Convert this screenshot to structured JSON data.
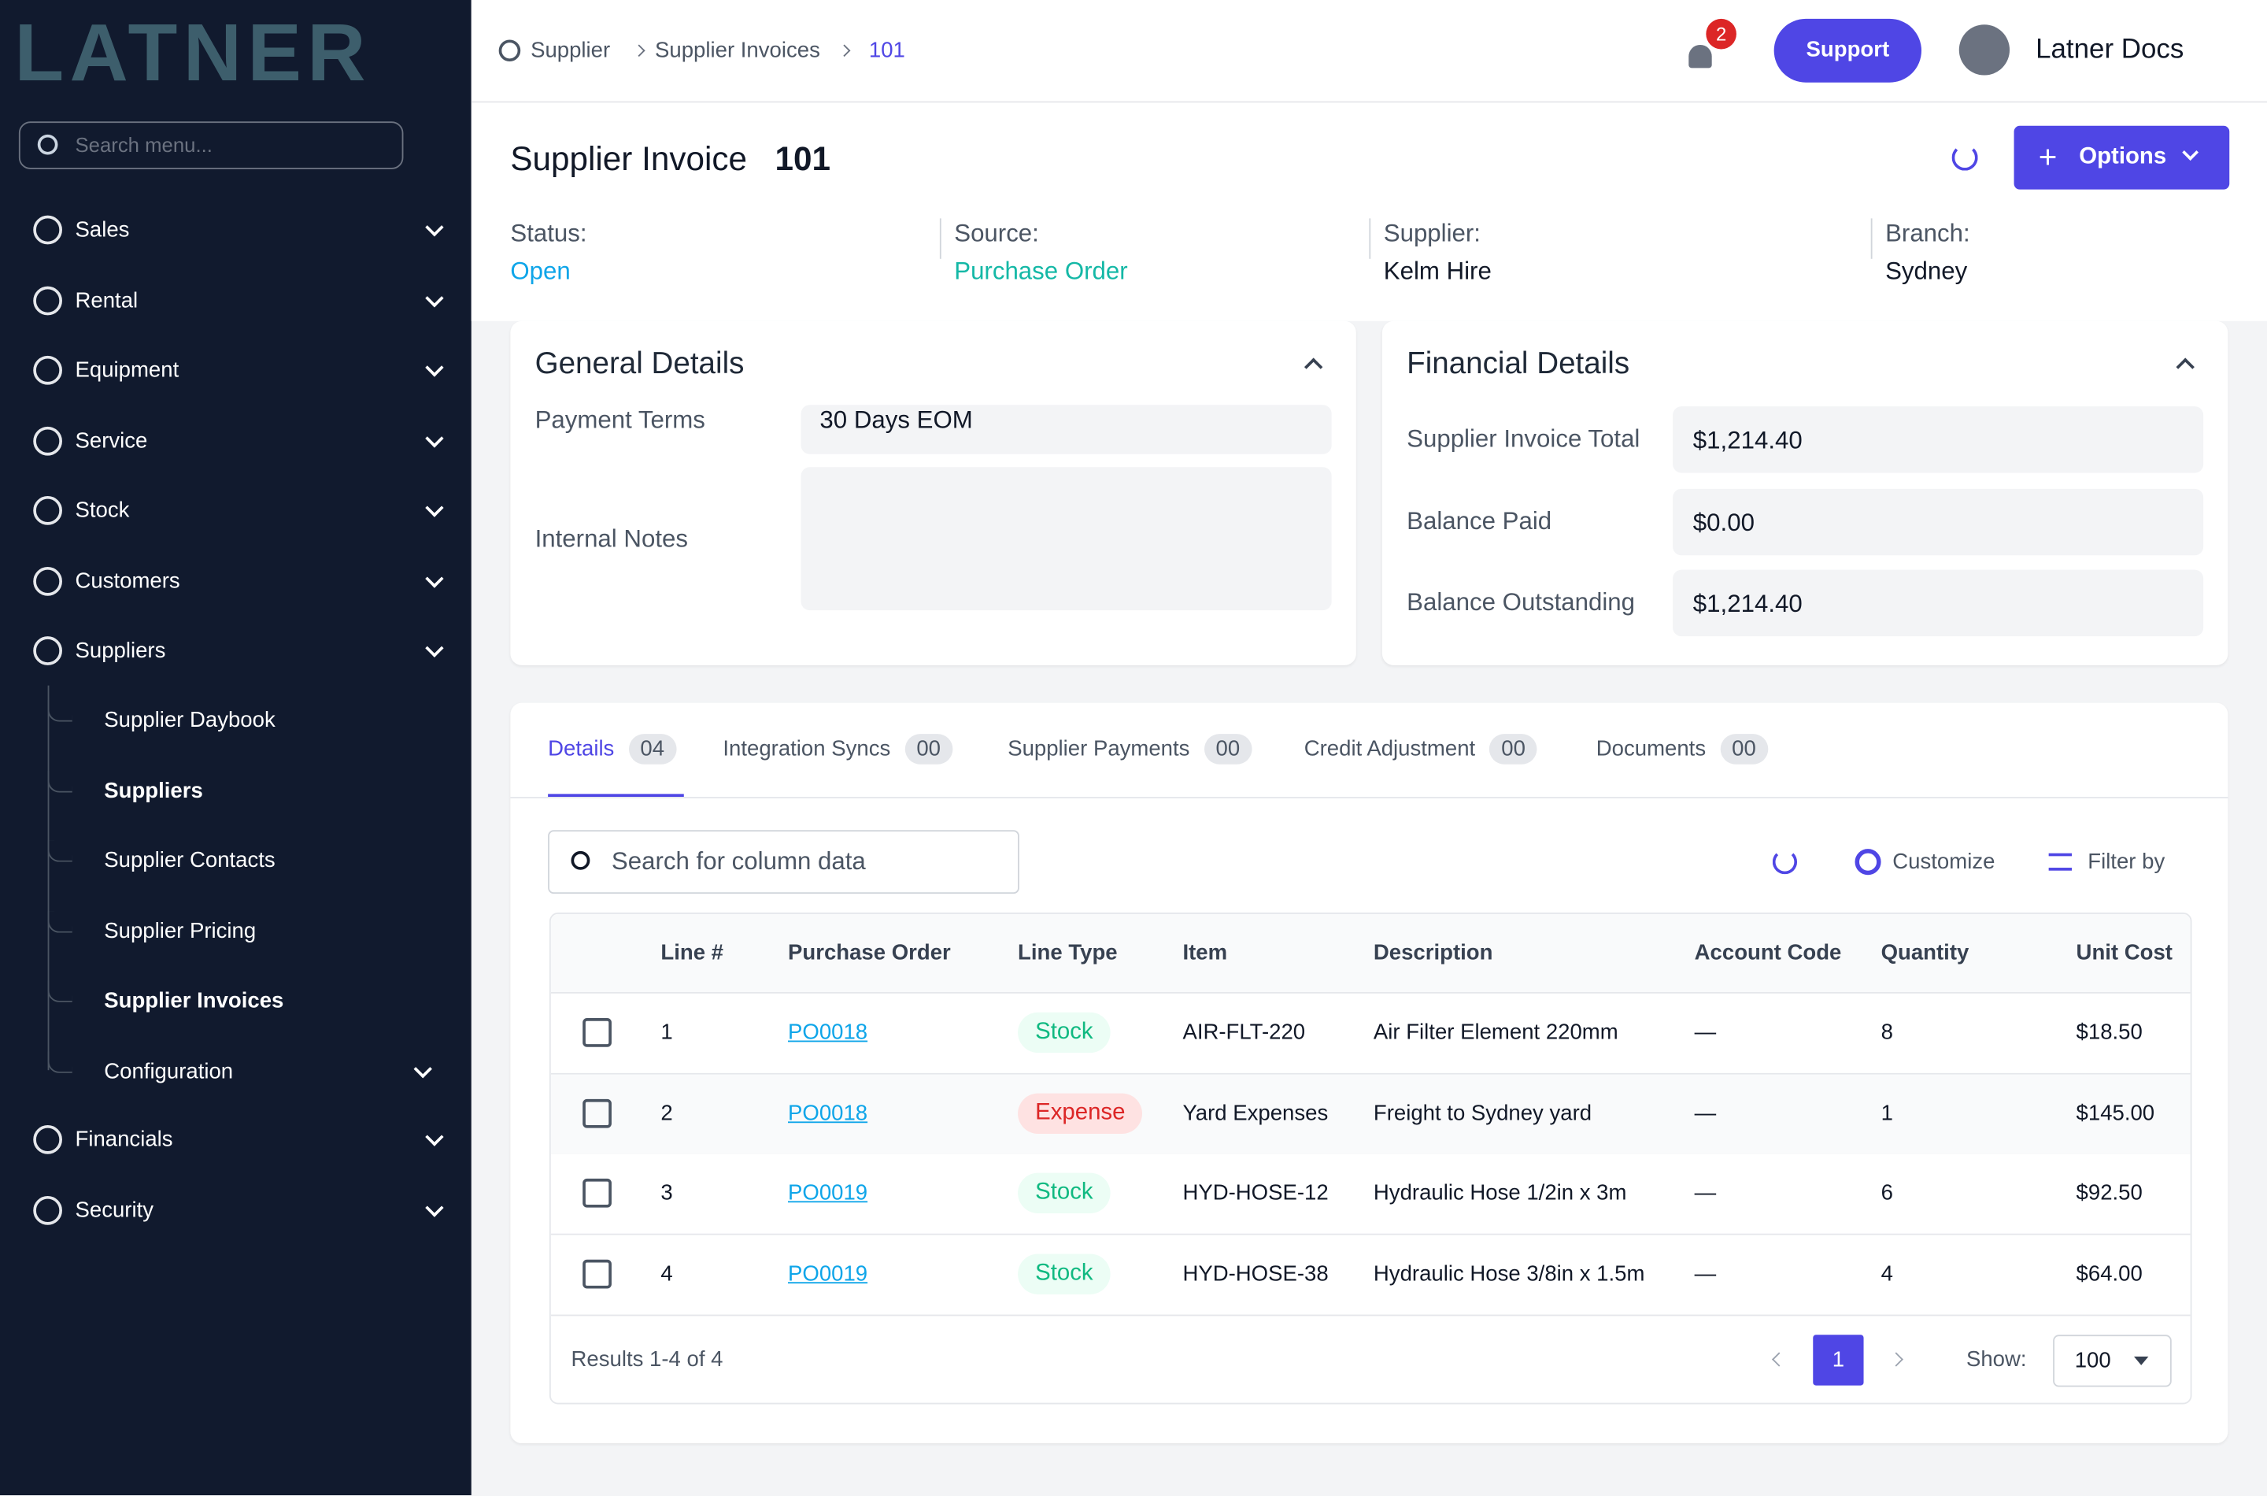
{
  "brand": "LATNER",
  "sidebar": {
    "search_placeholder": "Search menu...",
    "items": [
      "Sales",
      "Rental",
      "Equipment",
      "Service",
      "Stock",
      "Customers",
      "Suppliers"
    ],
    "children": [
      "Supplier Daybook",
      "Suppliers",
      "Supplier Contacts",
      "Supplier Pricing",
      "Supplier Invoices",
      "Configuration"
    ],
    "items_after": [
      "Financials",
      "Security"
    ]
  },
  "breadcrumb": [
    "Supplier",
    "Supplier Invoices",
    "101"
  ],
  "notifications": 2,
  "header": {
    "support": "Support",
    "user": "Latner Docs"
  },
  "invoice": {
    "title": "Supplier Invoice",
    "number": "101",
    "options": "Options",
    "fields": [
      {
        "label": "Status:",
        "value": "Open"
      },
      {
        "label": "Source:",
        "value": "Purchase Order"
      },
      {
        "label": "Supplier:",
        "value": "Kelm Hire"
      },
      {
        "label": "Branch:",
        "value": "Sydney"
      }
    ]
  },
  "general": {
    "title": "General Details",
    "payment_terms_label": "Payment Terms",
    "payment_terms": "30 Days EOM",
    "internal_notes_label": "Internal Notes"
  },
  "financial": {
    "title": "Financial Details",
    "rows": [
      {
        "label": "Supplier Invoice Total",
        "value": "$1,214.40"
      },
      {
        "label": "Balance Paid",
        "value": "$0.00"
      },
      {
        "label": "Balance Outstanding",
        "value": "$1,214.40"
      }
    ]
  },
  "tabs": [
    {
      "label": "Details",
      "count": "04"
    },
    {
      "label": "Integration Syncs",
      "count": "00"
    },
    {
      "label": "Supplier Payments",
      "count": "00"
    },
    {
      "label": "Credit Adjustment",
      "count": "00"
    },
    {
      "label": "Documents",
      "count": "00"
    }
  ],
  "table": {
    "search_placeholder": "Search for column data",
    "customize": "Customize",
    "filter": "Filter by",
    "columns": [
      "Line #",
      "Purchase Order",
      "Line Type",
      "Item",
      "Description",
      "Account Code",
      "Quantity",
      "Unit Cost"
    ],
    "rows": [
      [
        1,
        "PO0018",
        "Stock",
        "AIR-FLT-220",
        "Air Filter Element 220mm",
        "—",
        8,
        "$18.50"
      ],
      [
        2,
        "PO0018",
        "Expense",
        "Yard Expenses",
        "Freight to Sydney yard",
        "—",
        1,
        "$145.00"
      ],
      [
        3,
        "PO0019",
        "Stock",
        "HYD-HOSE-12",
        "Hydraulic Hose 1/2in x 3m",
        "—",
        6,
        "$92.50"
      ],
      [
        4,
        "PO0019",
        "Stock",
        "HYD-HOSE-38",
        "Hydraulic Hose 3/8in x 1.5m",
        "—",
        4,
        "$64.00"
      ]
    ],
    "results": "Results 1-4 of 4",
    "page": 1,
    "show_label": "Show:",
    "show_value": 100
  }
}
